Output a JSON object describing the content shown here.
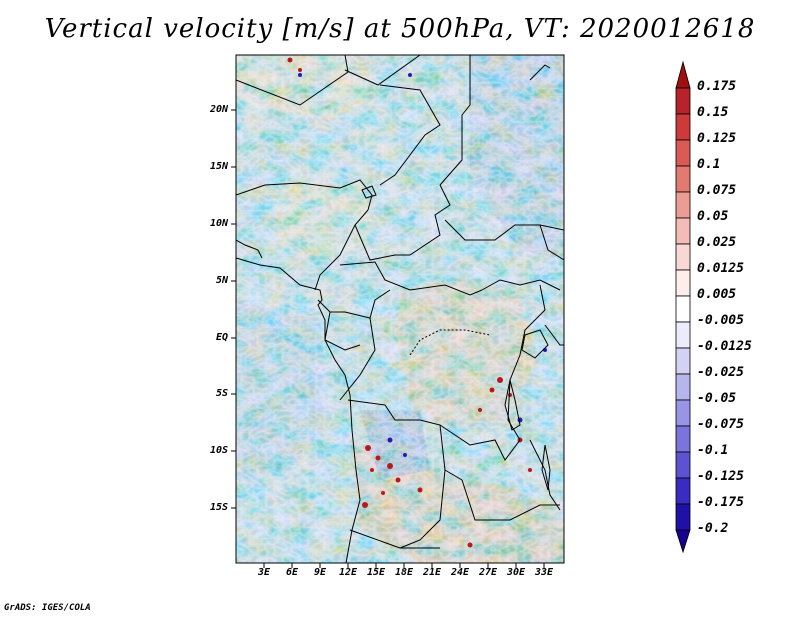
{
  "title": "Vertical velocity [m/s] at 500hPa, VT: 2020012618",
  "credit": "GrADS: IGES/COLA",
  "axes": {
    "lat_labels": [
      "20N",
      "15N",
      "10N",
      "5N",
      "EQ",
      "5S",
      "10S",
      "15S"
    ],
    "lon_labels": [
      "3E",
      "6E",
      "9E",
      "12E",
      "15E",
      "18E",
      "21E",
      "24E",
      "27E",
      "30E",
      "33E"
    ]
  },
  "colorbar": {
    "labels": [
      "0.175",
      "0.15",
      "0.125",
      "0.1",
      "0.075",
      "0.05",
      "0.025",
      "0.0125",
      "0.005",
      "-0.005",
      "-0.0125",
      "-0.025",
      "-0.05",
      "-0.075",
      "-0.1",
      "-0.125",
      "-0.175",
      "-0.2"
    ],
    "colors": [
      "#a01010",
      "#b8222a",
      "#cc3a3a",
      "#da5a55",
      "#e27a72",
      "#eb9c94",
      "#f3bcb6",
      "#f8d8d4",
      "#fdeeec",
      "#ffffff",
      "#ecebfb",
      "#d4d2f4",
      "#b8b4ee",
      "#9a94e6",
      "#7c74de",
      "#5c52d2",
      "#3a2cc0",
      "#2010a8",
      "#160090"
    ]
  }
}
